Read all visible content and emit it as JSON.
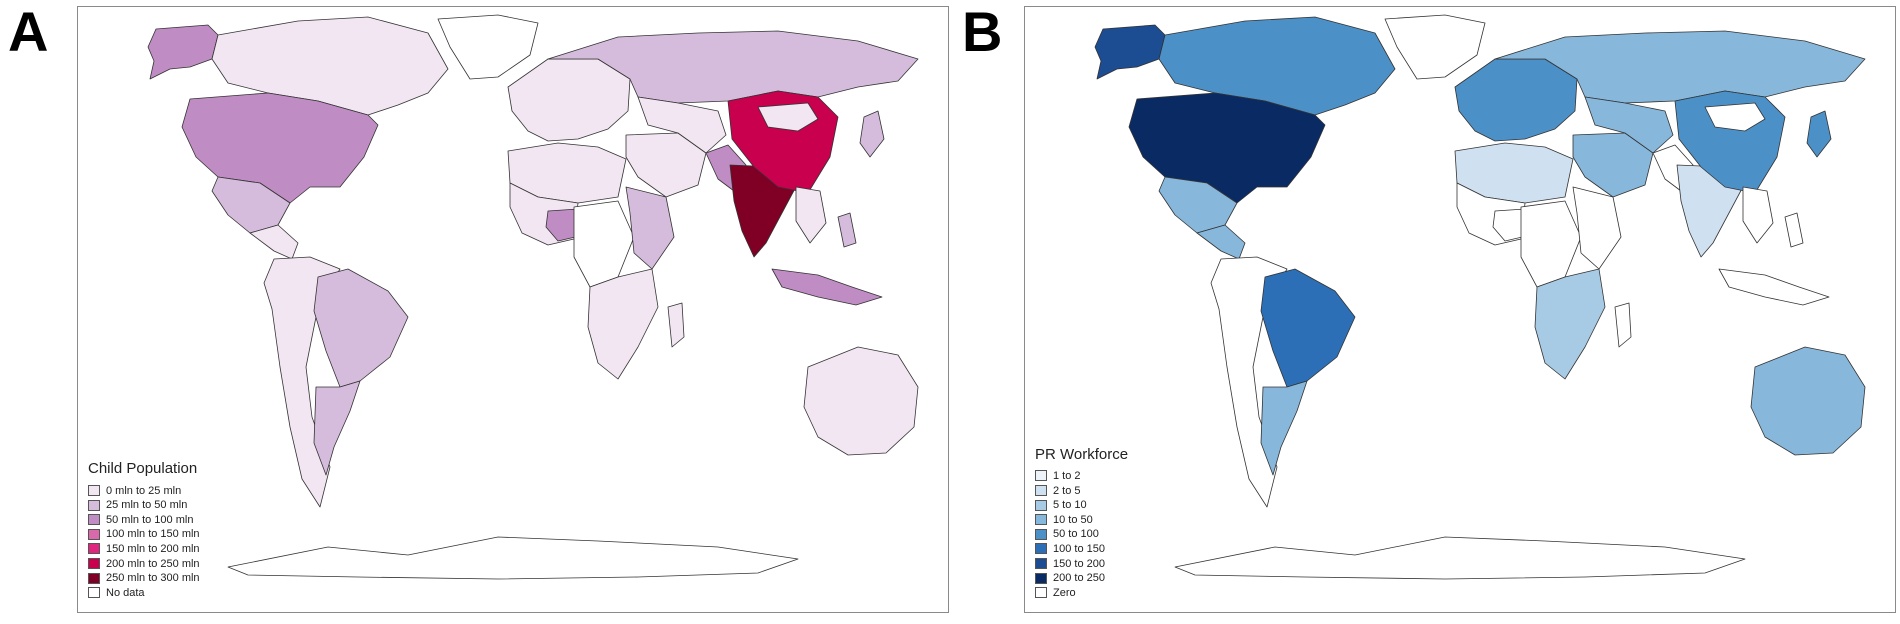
{
  "panels": [
    {
      "letter": "A",
      "legend": {
        "title": "Child Population",
        "items": [
          {
            "label": "0 mln to 25 mln",
            "color": "#f1e6f1"
          },
          {
            "label": "25 mln to 50 mln",
            "color": "#d6bcdc"
          },
          {
            "label": "50 mln to 100 mln",
            "color": "#c08cc4"
          },
          {
            "label": "100 mln to 150 mln",
            "color": "#d86aac"
          },
          {
            "label": "150 mln to 200 mln",
            "color": "#e0257e"
          },
          {
            "label": "200 mln to 250 mln",
            "color": "#c8004e"
          },
          {
            "label": "250 mln to 300 mln",
            "color": "#800025"
          },
          {
            "label": "No data",
            "color": "#ffffff"
          }
        ]
      },
      "regions": [
        {
          "name": "alaska",
          "color": "#c08cc4"
        },
        {
          "name": "canada",
          "color": "#f1e6f1"
        },
        {
          "name": "greenland",
          "color": "#ffffff"
        },
        {
          "name": "usa",
          "color": "#c08cc4"
        },
        {
          "name": "mexico",
          "color": "#d6bcdc"
        },
        {
          "name": "central-america",
          "color": "#f1e6f1"
        },
        {
          "name": "south-america",
          "color": "#f1e6f1"
        },
        {
          "name": "brazil",
          "color": "#d6bcdc"
        },
        {
          "name": "argentina",
          "color": "#d6bcdc"
        },
        {
          "name": "europe",
          "color": "#f1e6f1"
        },
        {
          "name": "russia",
          "color": "#d6bcdc"
        },
        {
          "name": "north-africa",
          "color": "#f1e6f1"
        },
        {
          "name": "west-africa",
          "color": "#f1e6f1"
        },
        {
          "name": "nigeria",
          "color": "#c08cc4"
        },
        {
          "name": "central-africa",
          "color": "#ffffff"
        },
        {
          "name": "east-africa",
          "color": "#d6bcdc"
        },
        {
          "name": "southern-africa",
          "color": "#f1e6f1"
        },
        {
          "name": "madagascar",
          "color": "#f1e6f1"
        },
        {
          "name": "middle-east",
          "color": "#f1e6f1"
        },
        {
          "name": "central-asia",
          "color": "#f1e6f1"
        },
        {
          "name": "pakistan",
          "color": "#c08cc4"
        },
        {
          "name": "india",
          "color": "#800025"
        },
        {
          "name": "china",
          "color": "#c8004e"
        },
        {
          "name": "mongolia",
          "color": "#f1e6f1"
        },
        {
          "name": "southeast-asia",
          "color": "#f1e6f1"
        },
        {
          "name": "indonesia",
          "color": "#c08cc4"
        },
        {
          "name": "philippines",
          "color": "#d6bcdc"
        },
        {
          "name": "japan",
          "color": "#d6bcdc"
        },
        {
          "name": "australia",
          "color": "#f1e6f1"
        },
        {
          "name": "antarctica",
          "color": "#ffffff"
        }
      ]
    },
    {
      "letter": "B",
      "legend": {
        "title": "PR Workforce",
        "items": [
          {
            "label": "1 to 2",
            "color": "#eef3fa"
          },
          {
            "label": "2 to 5",
            "color": "#cfe0f1"
          },
          {
            "label": "5 to 10",
            "color": "#a8cbe5"
          },
          {
            "label": "10 to 50",
            "color": "#87b7db"
          },
          {
            "label": "50 to 100",
            "color": "#4c90c8"
          },
          {
            "label": "100 to 150",
            "color": "#2c6fb6"
          },
          {
            "label": "150 to 200",
            "color": "#1c4c92"
          },
          {
            "label": "200 to 250",
            "color": "#0a2a64"
          },
          {
            "label": "Zero",
            "color": "#ffffff"
          }
        ]
      },
      "regions": [
        {
          "name": "alaska",
          "color": "#1c4c92"
        },
        {
          "name": "canada",
          "color": "#4c90c8"
        },
        {
          "name": "greenland",
          "color": "#ffffff"
        },
        {
          "name": "usa",
          "color": "#0a2a64"
        },
        {
          "name": "mexico",
          "color": "#87b7db"
        },
        {
          "name": "central-america",
          "color": "#87b7db"
        },
        {
          "name": "south-america",
          "color": "#ffffff"
        },
        {
          "name": "brazil",
          "color": "#2c6fb6"
        },
        {
          "name": "argentina",
          "color": "#87b7db"
        },
        {
          "name": "europe",
          "color": "#4c90c8"
        },
        {
          "name": "russia",
          "color": "#87b7db"
        },
        {
          "name": "north-africa",
          "color": "#cfe0f1"
        },
        {
          "name": "west-africa",
          "color": "#ffffff"
        },
        {
          "name": "nigeria",
          "color": "#ffffff"
        },
        {
          "name": "central-africa",
          "color": "#ffffff"
        },
        {
          "name": "east-africa",
          "color": "#ffffff"
        },
        {
          "name": "southern-africa",
          "color": "#a8cbe5"
        },
        {
          "name": "madagascar",
          "color": "#ffffff"
        },
        {
          "name": "middle-east",
          "color": "#87b7db"
        },
        {
          "name": "central-asia",
          "color": "#87b7db"
        },
        {
          "name": "pakistan",
          "color": "#ffffff"
        },
        {
          "name": "india",
          "color": "#cfe0f1"
        },
        {
          "name": "china",
          "color": "#4c90c8"
        },
        {
          "name": "mongolia",
          "color": "#ffffff"
        },
        {
          "name": "southeast-asia",
          "color": "#ffffff"
        },
        {
          "name": "indonesia",
          "color": "#ffffff"
        },
        {
          "name": "philippines",
          "color": "#ffffff"
        },
        {
          "name": "japan",
          "color": "#4c90c8"
        },
        {
          "name": "australia",
          "color": "#87b7db"
        },
        {
          "name": "antarctica",
          "color": "#ffffff"
        }
      ]
    }
  ]
}
